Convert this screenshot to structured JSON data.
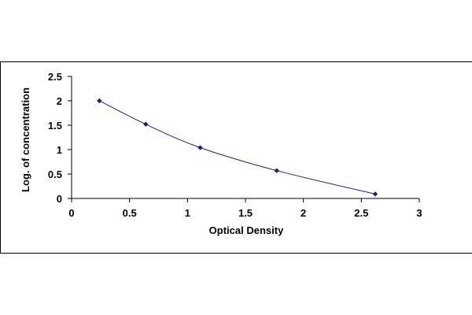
{
  "chart_data": {
    "type": "scatter",
    "title": "",
    "xlabel": "Optical Density",
    "ylabel": "Log. of concentration",
    "xlim": [
      0,
      3
    ],
    "ylim": [
      0,
      2.5
    ],
    "x_ticks": [
      "0",
      "0.5",
      "1",
      "1.5",
      "2",
      "2.5",
      "3"
    ],
    "y_ticks": [
      "0",
      "0.5",
      "1",
      "1.5",
      "2",
      "2.5"
    ],
    "grid": false,
    "legend": "none",
    "series": [
      {
        "marker": "diamond",
        "color": "#1f1f7a",
        "line": "smooth",
        "points": [
          {
            "x": 0.24,
            "y": 2.0
          },
          {
            "x": 0.64,
            "y": 1.52
          },
          {
            "x": 1.11,
            "y": 1.04
          },
          {
            "x": 1.77,
            "y": 0.57
          },
          {
            "x": 2.62,
            "y": 0.09
          }
        ]
      }
    ]
  }
}
